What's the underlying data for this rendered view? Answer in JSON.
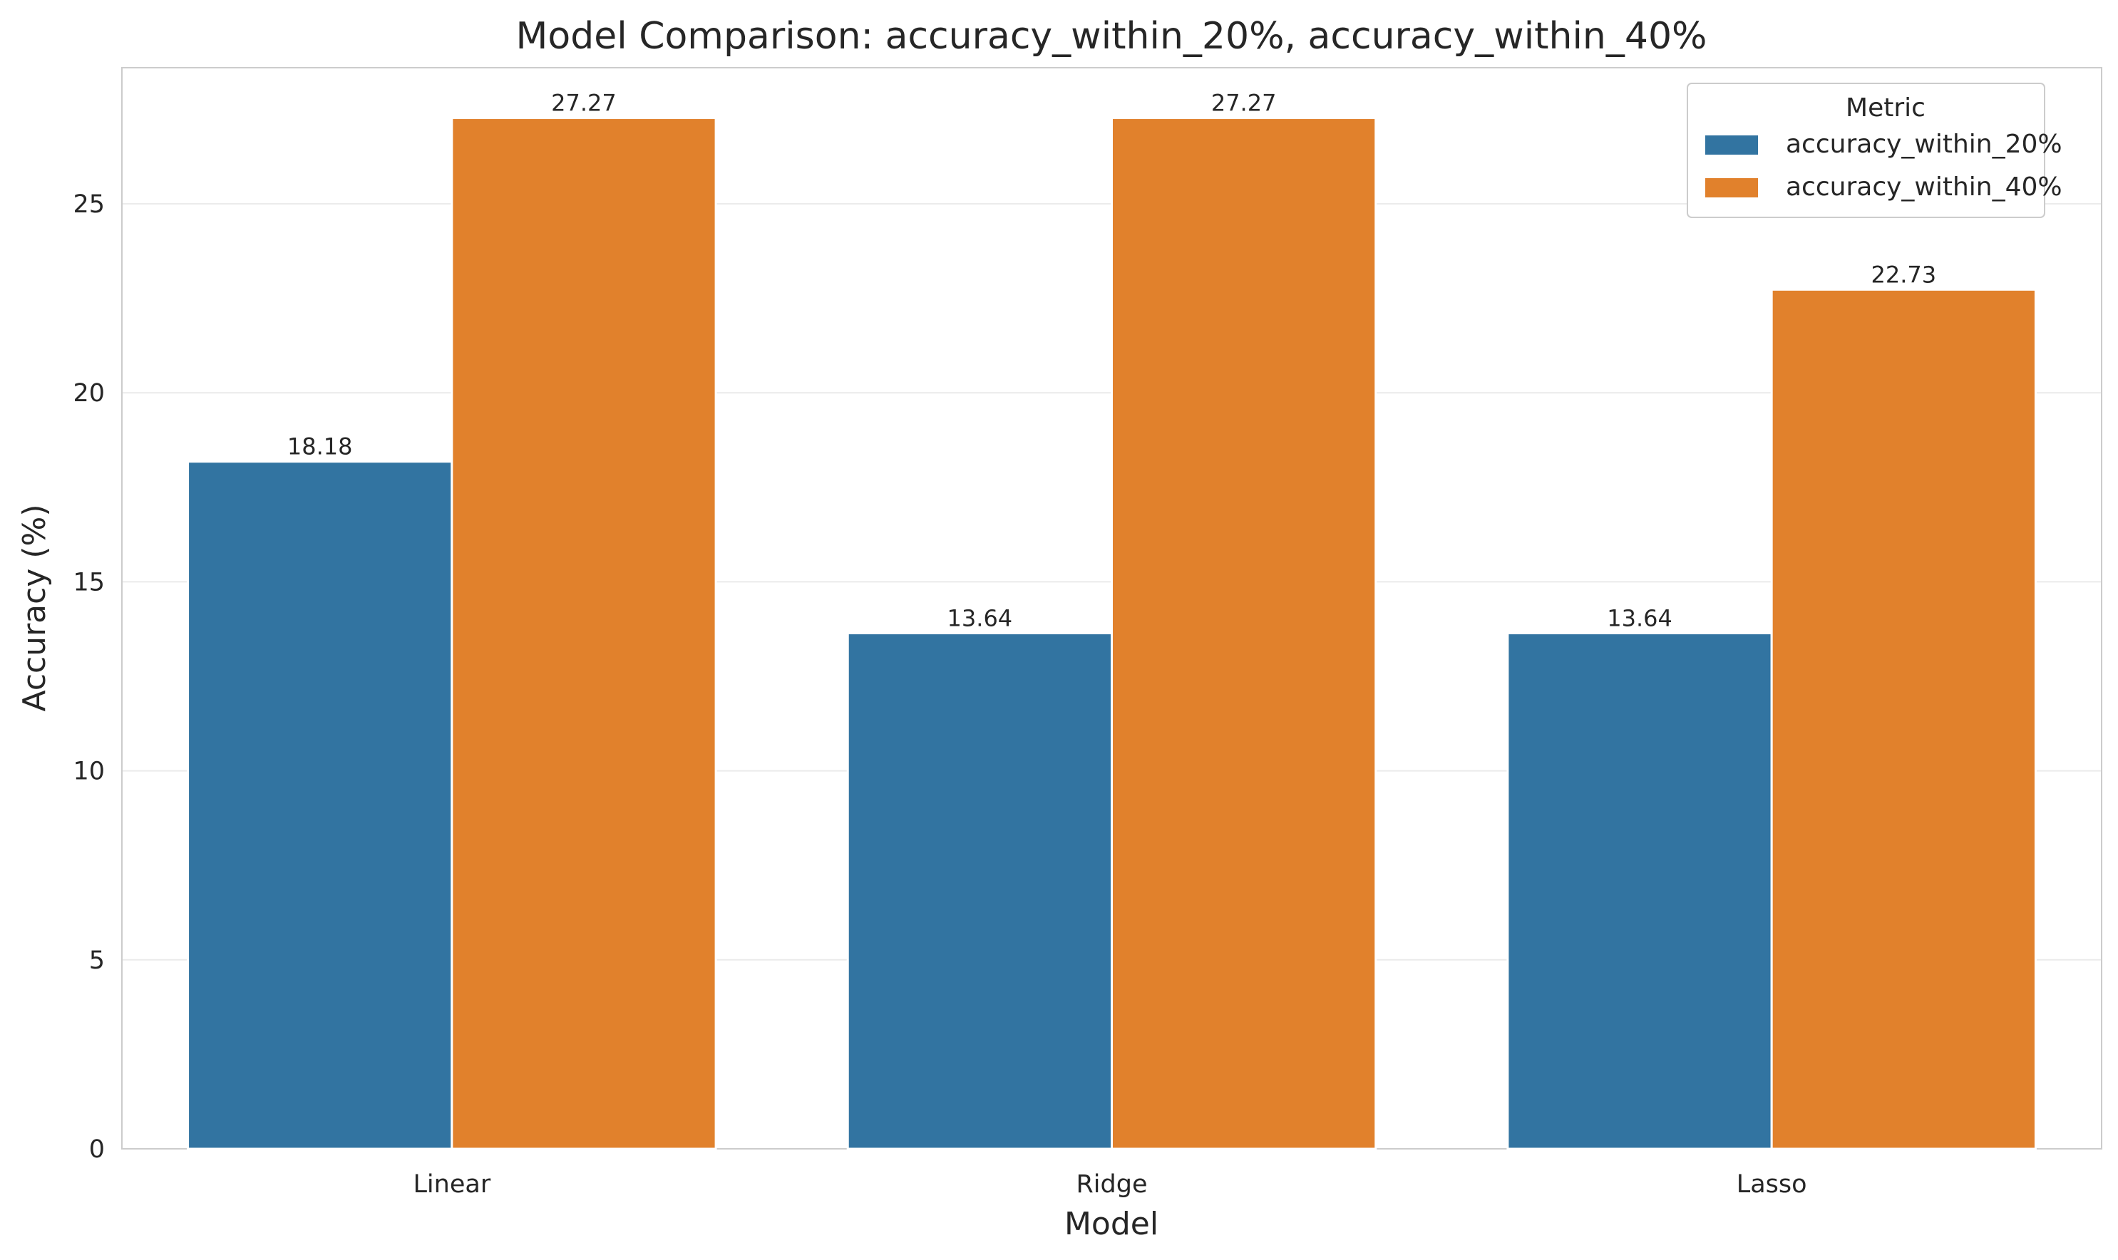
{
  "chart_data": {
    "type": "bar",
    "title": "Model Comparison: accuracy_within_20%, accuracy_within_40%",
    "xlabel": "Model",
    "ylabel": "Accuracy (%)",
    "categories": [
      "Linear",
      "Ridge",
      "Lasso"
    ],
    "series": [
      {
        "name": "accuracy_within_20%",
        "values": [
          18.18,
          13.64,
          13.64
        ],
        "color": "#3274a1",
        "labels": [
          "18.18",
          "13.64",
          "13.64"
        ]
      },
      {
        "name": "accuracy_within_40%",
        "values": [
          27.27,
          27.27,
          22.73
        ],
        "color": "#e1812c",
        "labels": [
          "27.27",
          "27.27",
          "22.73"
        ]
      }
    ],
    "ylim": [
      0,
      28.6
    ],
    "yticks": [
      0,
      5,
      10,
      15,
      20,
      25
    ],
    "ytick_labels": [
      "0",
      "5",
      "10",
      "15",
      "20",
      "25"
    ],
    "grid": "y",
    "legend": {
      "title": "Metric",
      "placement": "top-right"
    }
  }
}
